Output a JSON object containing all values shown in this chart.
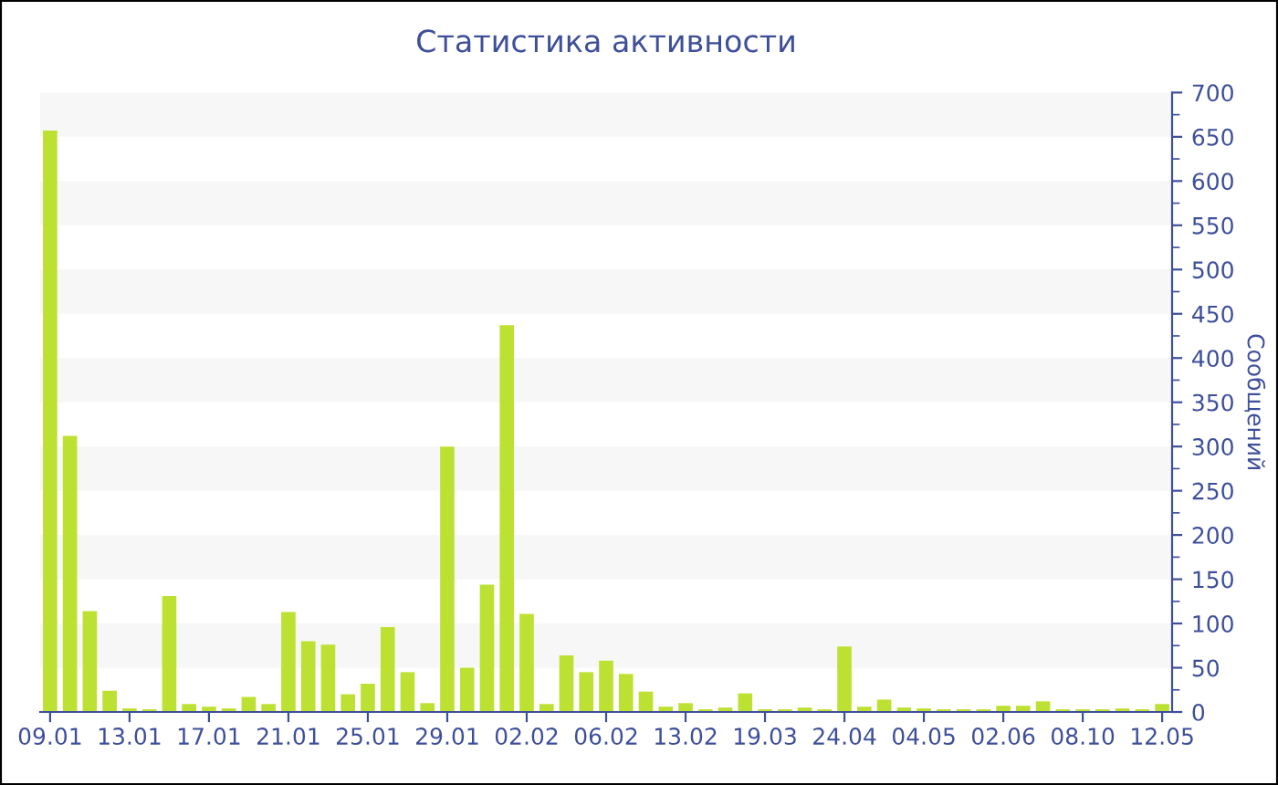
{
  "chart_data": {
    "type": "bar",
    "title": "Статистика активности",
    "ylabel": "Сообщений",
    "categories": [
      "09.01",
      null,
      null,
      null,
      "13.01",
      null,
      null,
      null,
      "17.01",
      null,
      null,
      null,
      "21.01",
      null,
      null,
      null,
      "25.01",
      null,
      null,
      null,
      "29.01",
      null,
      null,
      null,
      "02.02",
      null,
      null,
      null,
      "06.02",
      null,
      null,
      null,
      "13.02",
      null,
      null,
      null,
      "19.03",
      null,
      null,
      null,
      "24.04",
      null,
      null,
      null,
      "04.05",
      null,
      null,
      null,
      "02.06",
      null,
      null,
      null,
      "08.10",
      null,
      null,
      null,
      "12.05"
    ],
    "values": [
      657,
      312,
      114,
      24,
      4,
      3,
      131,
      9,
      6,
      4,
      17,
      9,
      113,
      80,
      76,
      20,
      32,
      96,
      45,
      10,
      300,
      50,
      144,
      437,
      111,
      9,
      64,
      45,
      58,
      43,
      23,
      6,
      10,
      3,
      5,
      21,
      3,
      3,
      5,
      3,
      74,
      6,
      14,
      5,
      4,
      3,
      3,
      3,
      7,
      7,
      12,
      3,
      3,
      3,
      4,
      3,
      9
    ],
    "color": "#bde132",
    "ylim": [
      0,
      700
    ],
    "yticks": [
      0,
      50,
      100,
      150,
      200,
      250,
      300,
      350,
      400,
      450,
      500,
      550,
      600,
      650,
      700
    ],
    "bands": [
      {
        "axis": "y",
        "from": 50,
        "to": 100,
        "color": "#f7f7f7"
      },
      {
        "axis": "y",
        "from": 150,
        "to": 200,
        "color": "#f7f7f7"
      },
      {
        "axis": "y",
        "from": 250,
        "to": 300,
        "color": "#f7f7f7"
      },
      {
        "axis": "y",
        "from": 350,
        "to": 400,
        "color": "#f7f7f7"
      },
      {
        "axis": "y",
        "from": 450,
        "to": 500,
        "color": "#f7f7f7"
      },
      {
        "axis": "y",
        "from": 550,
        "to": 600,
        "color": "#f7f7f7"
      },
      {
        "axis": "y",
        "from": 650,
        "to": 700,
        "color": "#f7f7f7"
      }
    ],
    "grid": false,
    "legend": false
  }
}
